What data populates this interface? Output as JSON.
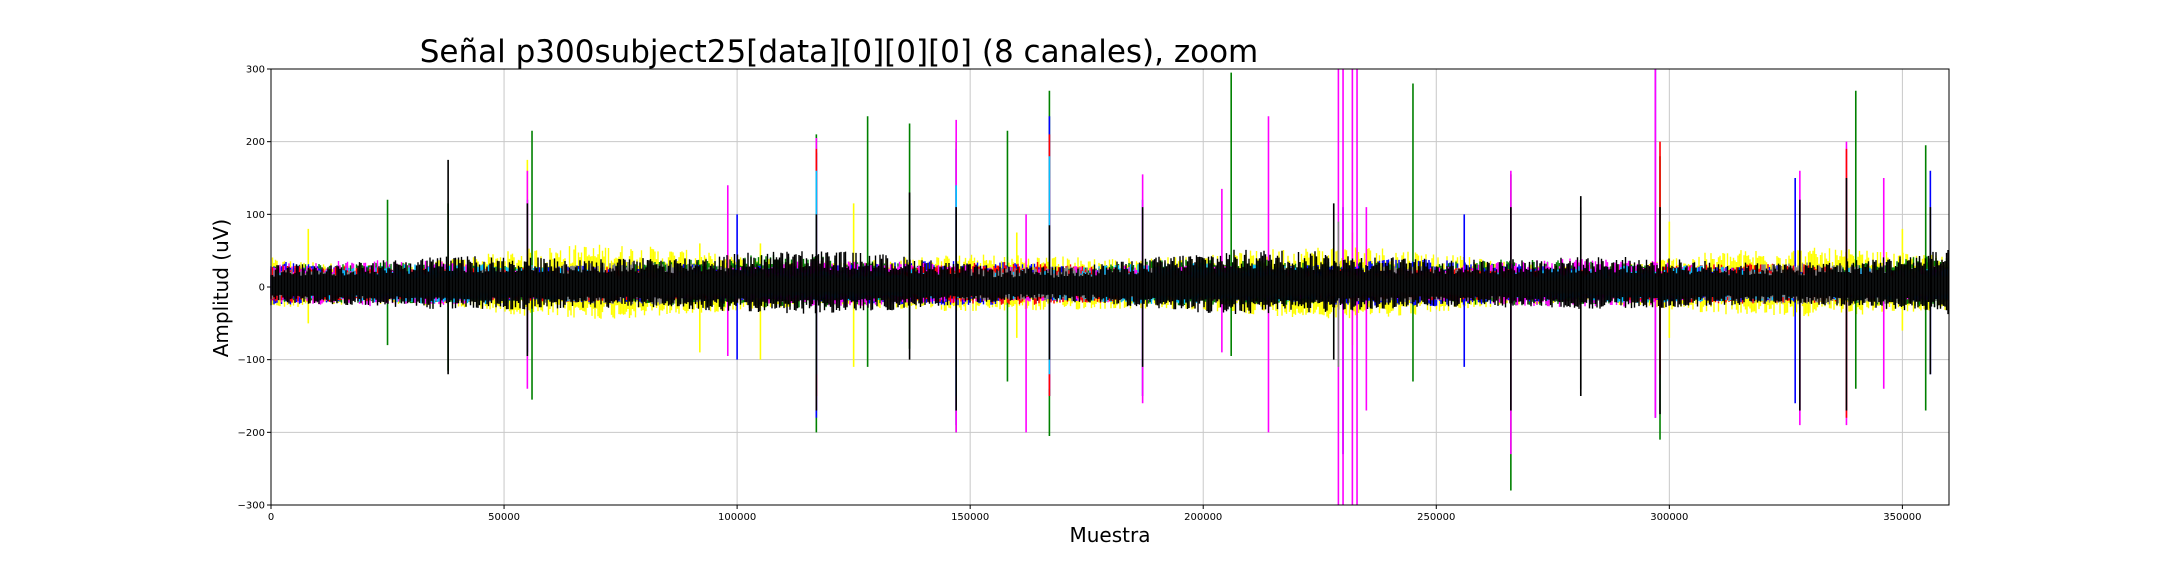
{
  "chart_data": {
    "type": "line",
    "title": "Señal p300subject25[data][0][0][0] (8 canales), zoom",
    "xlabel": "Muestra",
    "ylabel": "Amplitud (uV)",
    "xlim": [
      0,
      360000
    ],
    "ylim": [
      -300,
      300
    ],
    "x_ticks": [
      0,
      50000,
      100000,
      150000,
      200000,
      250000,
      300000,
      350000
    ],
    "x_tick_labels": [
      "0",
      "50000",
      "100000",
      "150000",
      "200000",
      "250000",
      "300000",
      "350000"
    ],
    "y_ticks": [
      300,
      200,
      100,
      0,
      -100,
      -200,
      -300
    ],
    "y_tick_labels": [
      "300",
      "200",
      "100",
      "0",
      "−100",
      "−200",
      "−300"
    ],
    "grid": true,
    "legend": "none",
    "series": [
      {
        "color": "#ffff00",
        "band": [
          -45,
          60
        ],
        "spikes": [
          [
            8000,
            80,
            -50
          ],
          [
            55000,
            175,
            -60
          ],
          [
            92000,
            60,
            -90
          ],
          [
            105000,
            60,
            -100
          ],
          [
            125000,
            115,
            -110
          ],
          [
            160000,
            75,
            -70
          ],
          [
            232000,
            75,
            -80
          ],
          [
            300000,
            90,
            -70
          ],
          [
            350000,
            80,
            -60
          ]
        ]
      },
      {
        "color": "#008000",
        "band": [
          -30,
          45
        ],
        "spikes": [
          [
            25000,
            120,
            -80
          ],
          [
            38000,
            115,
            -115
          ],
          [
            56000,
            215,
            -155
          ],
          [
            117000,
            210,
            -200
          ],
          [
            128000,
            235,
            -110
          ],
          [
            137000,
            225,
            -85
          ],
          [
            147000,
            200,
            -200
          ],
          [
            158000,
            215,
            -130
          ],
          [
            167000,
            270,
            -205
          ],
          [
            206000,
            295,
            -95
          ],
          [
            245000,
            280,
            -130
          ],
          [
            266000,
            155,
            -280
          ],
          [
            298000,
            180,
            -210
          ],
          [
            340000,
            270,
            -140
          ],
          [
            355000,
            195,
            -170
          ]
        ]
      },
      {
        "color": "#0000ff",
        "band": [
          -28,
          40
        ],
        "spikes": [
          [
            55000,
            120,
            -90
          ],
          [
            100000,
            100,
            -100
          ],
          [
            117000,
            185,
            -180
          ],
          [
            147000,
            190,
            -190
          ],
          [
            167000,
            235,
            -150
          ],
          [
            187000,
            120,
            -150
          ],
          [
            230000,
            110,
            -230
          ],
          [
            256000,
            100,
            -110
          ],
          [
            297000,
            300,
            -180
          ],
          [
            327000,
            150,
            -160
          ],
          [
            356000,
            160,
            -120
          ]
        ]
      },
      {
        "color": "#ff00ff",
        "band": [
          -28,
          40
        ],
        "spikes": [
          [
            55000,
            160,
            -140
          ],
          [
            98000,
            140,
            -95
          ],
          [
            117000,
            205,
            -170
          ],
          [
            147000,
            230,
            -200
          ],
          [
            162000,
            100,
            -200
          ],
          [
            167000,
            150,
            -140
          ],
          [
            187000,
            155,
            -160
          ],
          [
            204000,
            135,
            -90
          ],
          [
            214000,
            235,
            -200
          ],
          [
            229000,
            300,
            -300
          ],
          [
            230000,
            300,
            -300
          ],
          [
            232000,
            300,
            -300
          ],
          [
            233000,
            300,
            -300
          ],
          [
            235000,
            110,
            -170
          ],
          [
            266000,
            160,
            -230
          ],
          [
            297000,
            300,
            -180
          ],
          [
            328000,
            160,
            -190
          ],
          [
            338000,
            200,
            -190
          ],
          [
            346000,
            150,
            -140
          ]
        ]
      },
      {
        "color": "#ff0000",
        "band": [
          -25,
          35
        ],
        "spikes": [
          [
            117000,
            190,
            -150
          ],
          [
            167000,
            210,
            -150
          ],
          [
            298000,
            200,
            -120
          ],
          [
            338000,
            190,
            -180
          ]
        ]
      },
      {
        "color": "#00bfff",
        "band": [
          -25,
          35
        ],
        "spikes": [
          [
            117000,
            160,
            -120
          ],
          [
            147000,
            140,
            -150
          ],
          [
            167000,
            180,
            -120
          ]
        ]
      },
      {
        "color": "#808080",
        "band": [
          -25,
          35
        ],
        "spikes": [
          [
            147000,
            110,
            -110
          ],
          [
            229000,
            90,
            -110
          ],
          [
            281000,
            110,
            -140
          ]
        ]
      },
      {
        "color": "#000000",
        "band": [
          -40,
          55
        ],
        "spikes": [
          [
            38000,
            175,
            -120
          ],
          [
            55000,
            115,
            -95
          ],
          [
            117000,
            100,
            -170
          ],
          [
            137000,
            130,
            -100
          ],
          [
            147000,
            110,
            -170
          ],
          [
            167000,
            85,
            -100
          ],
          [
            187000,
            110,
            -110
          ],
          [
            228000,
            115,
            -100
          ],
          [
            266000,
            110,
            -170
          ],
          [
            281000,
            125,
            -150
          ],
          [
            298000,
            110,
            -175
          ],
          [
            328000,
            120,
            -170
          ],
          [
            338000,
            150,
            -170
          ],
          [
            356000,
            110,
            -120
          ]
        ]
      }
    ]
  }
}
